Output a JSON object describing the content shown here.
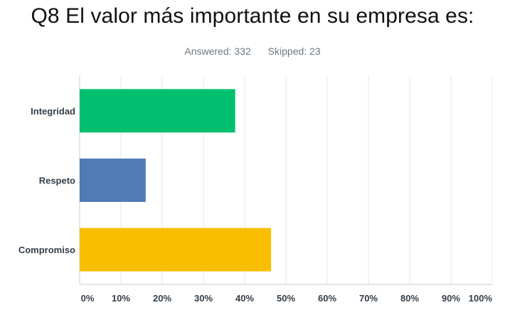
{
  "title": "Q8 El valor más importante en su empresa es:",
  "stats": {
    "answered": "Answered: 332",
    "skipped": "Skipped: 23"
  },
  "chart_data": {
    "type": "bar",
    "orientation": "horizontal",
    "categories": [
      "Integridad",
      "Respeto",
      "Compromiso"
    ],
    "values": [
      37.7,
      16.0,
      46.4
    ],
    "colors": [
      "#00bf6f",
      "#507cb6",
      "#f9be00"
    ],
    "xlim": [
      0,
      100
    ],
    "xticks": [
      "0%",
      "10%",
      "20%",
      "30%",
      "40%",
      "50%",
      "60%",
      "70%",
      "80%",
      "90%",
      "100%"
    ],
    "grid": true,
    "title": "Q8 El valor más importante en su empresa es:",
    "xlabel": "",
    "ylabel": ""
  }
}
